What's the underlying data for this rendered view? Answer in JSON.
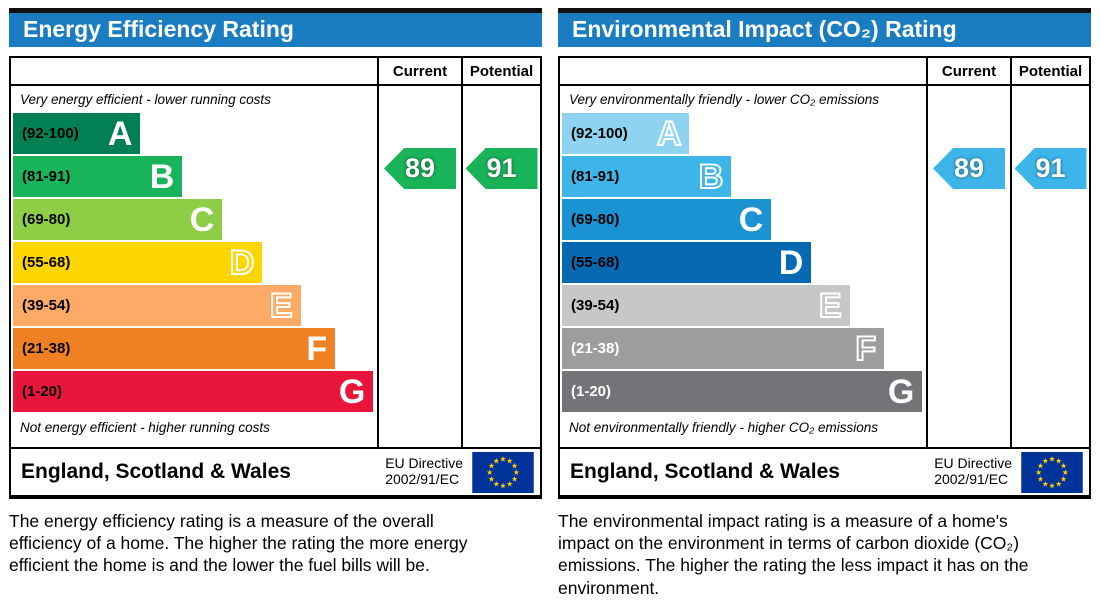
{
  "colors": {
    "header_bg": "#1a7dc2",
    "header_text": "#ffffff",
    "flag_bg": "#003399",
    "flag_star": "#ffcc00"
  },
  "chart_data": [
    {
      "type": "bar",
      "title": "Energy Efficiency Rating",
      "categories": [
        "A (92-100)",
        "B (81-91)",
        "C (69-80)",
        "D (55-68)",
        "E (39-54)",
        "F (21-38)",
        "G (1-20)"
      ],
      "band_colors": [
        "#008054",
        "#19b459",
        "#8dce46",
        "#ffd500",
        "#fcaa65",
        "#ef8023",
        "#e9153b"
      ],
      "current": 89,
      "potential": 91,
      "current_band": "B",
      "potential_band": "B",
      "scale_range": [
        1,
        100
      ],
      "legend_position": "columns-right"
    },
    {
      "type": "bar",
      "title": "Environmental Impact (CO₂) Rating",
      "categories": [
        "A (92-100)",
        "B (81-91)",
        "C (69-80)",
        "D (55-68)",
        "E (39-54)",
        "F (21-38)",
        "G (1-20)"
      ],
      "band_colors": [
        "#8ed4f0",
        "#3db5e9",
        "#1b92d2",
        "#0769b2",
        "#c6c7c9",
        "#9b9d9f",
        "#727477"
      ],
      "current": 89,
      "potential": 91,
      "current_band": "B",
      "potential_band": "B",
      "scale_range": [
        1,
        100
      ],
      "legend_position": "columns-right"
    }
  ],
  "charts": [
    {
      "title": "Energy Efficiency Rating",
      "table_header": {
        "current": "Current",
        "potential": "Potential"
      },
      "top_note": "Very energy efficient - lower running costs",
      "bottom_note": "Not energy efficient - higher running costs",
      "bands": [
        {
          "letter": "A",
          "range": "(92-100)",
          "color": "#008054",
          "width_pct": 35,
          "label_color": "#000000",
          "letter_style": "solid"
        },
        {
          "letter": "B",
          "range": "(81-91)",
          "color": "#19b459",
          "width_pct": 46.5,
          "label_color": "#000000",
          "letter_style": "solid"
        },
        {
          "letter": "C",
          "range": "(69-80)",
          "color": "#8dce46",
          "width_pct": 57.5,
          "label_color": "#000000",
          "letter_style": "solid"
        },
        {
          "letter": "D",
          "range": "(55-68)",
          "color": "#ffd500",
          "width_pct": 68.5,
          "label_color": "#000000",
          "letter_style": "outline"
        },
        {
          "letter": "E",
          "range": "(39-54)",
          "color": "#fcaa65",
          "width_pct": 79,
          "label_color": "#000000",
          "letter_style": "outline"
        },
        {
          "letter": "F",
          "range": "(21-38)",
          "color": "#ef8023",
          "width_pct": 88.5,
          "label_color": "#000000",
          "letter_style": "solid"
        },
        {
          "letter": "G",
          "range": "(1-20)",
          "color": "#e9153b",
          "width_pct": 99,
          "label_color": "#000000",
          "letter_style": "solid"
        }
      ],
      "current": {
        "value": "89",
        "color": "#19b459",
        "band_index": 1
      },
      "potential": {
        "value": "91",
        "color": "#19b459",
        "band_index": 1
      },
      "footer": {
        "region": "England, Scotland & Wales",
        "directive_line1": "EU Directive",
        "directive_line2": "2002/91/EC"
      },
      "description": "The energy efficiency rating is a measure of the overall efficiency of a home. The higher the rating the more energy efficient the home is and the lower the fuel bills will be."
    },
    {
      "title": "Environmental Impact (CO₂) Rating",
      "table_header": {
        "current": "Current",
        "potential": "Potential"
      },
      "top_note": "Very environmentally friendly - lower CO₂ emissions",
      "bottom_note": "Not environmentally friendly - higher CO₂ emissions",
      "bands": [
        {
          "letter": "A",
          "range": "(92-100)",
          "color": "#8ed4f0",
          "width_pct": 35,
          "label_color": "#000000",
          "letter_style": "outline"
        },
        {
          "letter": "B",
          "range": "(81-91)",
          "color": "#3db5e9",
          "width_pct": 46.5,
          "label_color": "#000000",
          "letter_style": "outline"
        },
        {
          "letter": "C",
          "range": "(69-80)",
          "color": "#1b92d2",
          "width_pct": 57.5,
          "label_color": "#000000",
          "letter_style": "solid"
        },
        {
          "letter": "D",
          "range": "(55-68)",
          "color": "#0769b2",
          "width_pct": 68.5,
          "label_color": "#000000",
          "letter_style": "solid"
        },
        {
          "letter": "E",
          "range": "(39-54)",
          "color": "#c6c7c9",
          "width_pct": 79,
          "label_color": "#000000",
          "letter_style": "outline"
        },
        {
          "letter": "F",
          "range": "(21-38)",
          "color": "#9b9d9f",
          "width_pct": 88.5,
          "label_color": "#ffffff",
          "letter_style": "outline"
        },
        {
          "letter": "G",
          "range": "(1-20)",
          "color": "#727477",
          "width_pct": 99,
          "label_color": "#ffffff",
          "letter_style": "solid"
        }
      ],
      "current": {
        "value": "89",
        "color": "#3db5e9",
        "band_index": 1
      },
      "potential": {
        "value": "91",
        "color": "#3db5e9",
        "band_index": 1
      },
      "footer": {
        "region": "England, Scotland & Wales",
        "directive_line1": "EU Directive",
        "directive_line2": "2002/91/EC"
      },
      "description": "The environmental impact rating is a measure of a home's impact on the environment in terms of carbon dioxide (CO₂) emissions. The higher the rating the less impact it has on the environment."
    }
  ]
}
